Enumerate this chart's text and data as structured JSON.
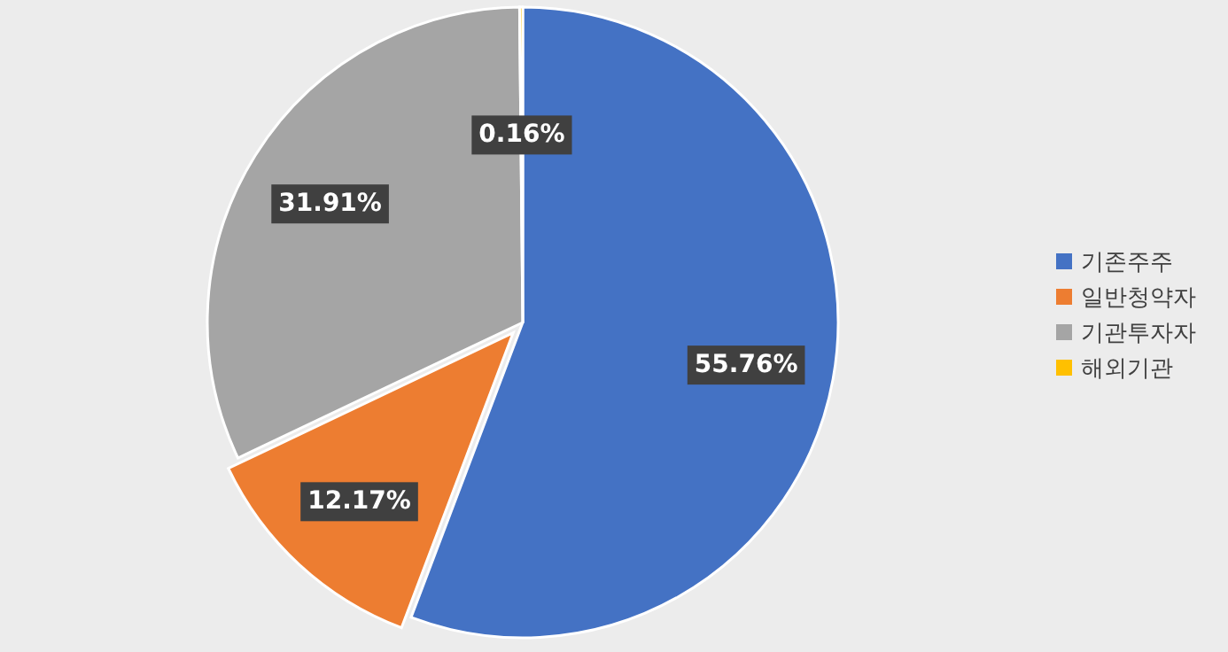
{
  "chart_data": {
    "type": "pie",
    "categories": [
      "기존주주",
      "일반청약자",
      "기관투자자",
      "해외기관"
    ],
    "values": [
      55.76,
      12.17,
      31.91,
      0.16
    ],
    "colors": [
      "#4472c4",
      "#ed7d31",
      "#a5a5a5",
      "#ffc000"
    ],
    "value_labels": [
      "55.76%",
      "12.17%",
      "31.91%",
      "0.16%"
    ],
    "legend": "right"
  }
}
